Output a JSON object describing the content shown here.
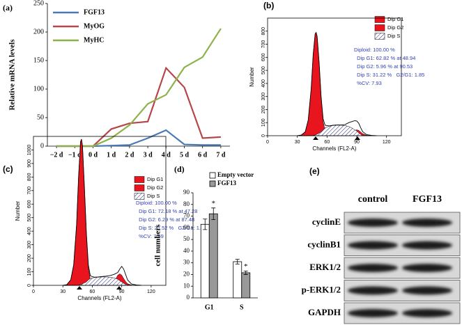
{
  "chart_data": [
    {
      "type": "line",
      "label": "(a)",
      "y_label": "Relative mRNA levels",
      "categories": [
        "−2 d",
        "−1 d",
        "0 d",
        "1 d",
        "2 d",
        "3 d",
        "4 d",
        "5 d",
        "6 d",
        "7 d"
      ],
      "ylim": [
        0,
        250
      ],
      "yticks": [
        0,
        50,
        100,
        150,
        200,
        250
      ],
      "series": [
        {
          "name": "FGF13",
          "color": "#4a7ab5",
          "values": [
            0,
            0,
            0,
            1,
            2,
            14,
            28,
            3,
            2,
            2
          ]
        },
        {
          "name": "MyOG",
          "color": "#b5474a",
          "values": [
            0,
            0,
            0,
            30,
            40,
            43,
            137,
            103,
            14,
            16
          ]
        },
        {
          "name": "MyHC",
          "color": "#8fb14a",
          "values": [
            0,
            0,
            0,
            14,
            37,
            74,
            90,
            138,
            156,
            206
          ]
        }
      ]
    },
    {
      "type": "area",
      "label": "(b)",
      "x_label": "Channels (FL2-A)",
      "y_label": "Number",
      "xlim": [
        0,
        135
      ],
      "xticks": [
        0,
        30,
        60,
        90,
        120
      ],
      "ylim": [
        0,
        900
      ],
      "yticks": [
        0,
        100,
        200,
        300,
        400,
        500,
        600,
        700,
        800
      ],
      "x": [
        30,
        34,
        38,
        41,
        44,
        46,
        48,
        49,
        50,
        52,
        54,
        56,
        58,
        62,
        66,
        70,
        74,
        78,
        82,
        86,
        88,
        90,
        92,
        94,
        96,
        100,
        105,
        110
      ],
      "series": [
        {
          "name": "Dip G1",
          "color": "#e8141e",
          "values": [
            0,
            5,
            30,
            120,
            360,
            620,
            780,
            790,
            760,
            560,
            300,
            110,
            40,
            10,
            2,
            0,
            0,
            0,
            0,
            0,
            0,
            0,
            0,
            0,
            0,
            0,
            0,
            0
          ]
        },
        {
          "name": "Dip G2",
          "color": "#e8141e",
          "values": [
            0,
            0,
            0,
            0,
            0,
            0,
            0,
            0,
            0,
            0,
            0,
            0,
            0,
            0,
            0,
            0,
            0,
            0,
            5,
            25,
            40,
            45,
            40,
            28,
            15,
            3,
            0,
            0
          ]
        },
        {
          "name": "Dip S",
          "color": "#1a237e",
          "pattern": "hatch",
          "values": [
            0,
            0,
            0,
            0,
            0,
            2,
            5,
            8,
            12,
            20,
            30,
            45,
            60,
            72,
            78,
            80,
            80,
            78,
            70,
            55,
            45,
            35,
            22,
            10,
            3,
            0,
            0,
            0
          ]
        }
      ],
      "outline": [
        0,
        5,
        30,
        120,
        360,
        620,
        780,
        790,
        760,
        560,
        300,
        130,
        80,
        75,
        80,
        82,
        82,
        85,
        100,
        110,
        115,
        112,
        95,
        60,
        30,
        8,
        2,
        0
      ],
      "stats": [
        "Diploid: 100.00 %",
        "  Dip G1: 62.82 % at 48.94",
        "  Dip G2: 5.96 % at 90.53",
        "  Dip S: 31.22 %   G2/G1: 1.85",
        "  %CV: 7.93"
      ]
    },
    {
      "type": "area",
      "label": "(c)",
      "x_label": "Channels (FL2-A)",
      "y_label": "Number",
      "xlim": [
        0,
        135
      ],
      "xticks": [
        0,
        30,
        60,
        90,
        120
      ],
      "ylim": [
        0,
        1100
      ],
      "yticks": [
        0,
        100,
        200,
        300,
        400,
        500,
        600,
        700,
        800,
        900,
        1000
      ],
      "x": [
        30,
        34,
        38,
        41,
        44,
        46,
        48,
        49,
        50,
        52,
        54,
        56,
        58,
        62,
        66,
        70,
        74,
        78,
        82,
        86,
        88,
        90,
        92,
        94,
        96,
        100,
        105,
        110
      ],
      "series": [
        {
          "name": "Dip G1",
          "color": "#e8141e",
          "values": [
            0,
            5,
            40,
            150,
            450,
            800,
            1060,
            1080,
            1030,
            720,
            380,
            130,
            40,
            10,
            2,
            0,
            0,
            0,
            0,
            0,
            0,
            0,
            0,
            0,
            0,
            0,
            0,
            0
          ]
        },
        {
          "name": "Dip G2",
          "color": "#e8141e",
          "values": [
            0,
            0,
            0,
            0,
            0,
            0,
            0,
            0,
            0,
            0,
            0,
            0,
            0,
            0,
            0,
            0,
            0,
            0,
            20,
            75,
            85,
            75,
            50,
            28,
            12,
            2,
            0,
            0
          ]
        },
        {
          "name": "Dip S",
          "color": "#1a237e",
          "pattern": "hatch",
          "values": [
            0,
            0,
            0,
            0,
            0,
            2,
            5,
            8,
            12,
            18,
            25,
            40,
            50,
            58,
            60,
            62,
            62,
            60,
            55,
            45,
            35,
            25,
            15,
            8,
            3,
            0,
            0,
            0
          ]
        }
      ],
      "outline": [
        0,
        5,
        40,
        150,
        450,
        800,
        1060,
        1080,
        1030,
        720,
        380,
        150,
        70,
        60,
        62,
        65,
        68,
        72,
        80,
        95,
        120,
        140,
        120,
        80,
        40,
        10,
        3,
        0
      ],
      "stats": [
        "Diploid: 100.00 %",
        "  Dip G1: 72.18 % at 47.28",
        "  Dip G2: 6.29 % at 87.48",
        "  Dip S: 21.52 %   G2/G1: 1.85",
        "  %CV: 7.69"
      ]
    },
    {
      "type": "bar",
      "label": "(d)",
      "y_label": "cell numbers",
      "categories": [
        "G1",
        "S"
      ],
      "ylim": [
        0,
        90
      ],
      "yticks": [
        0,
        10,
        20,
        30,
        40,
        50,
        60,
        70,
        80,
        90
      ],
      "series": [
        {
          "name": "Empty vector",
          "color": "#ffffff",
          "values": [
            63,
            31
          ],
          "errors": [
            4.5,
            2
          ]
        },
        {
          "name": "FGF13",
          "color": "#999999",
          "values": [
            72,
            21.5
          ],
          "errors": [
            5,
            1.5
          ]
        }
      ],
      "annotations": [
        "*",
        "*"
      ]
    }
  ],
  "blot": {
    "label": "(e)",
    "columns": [
      "control",
      "FGF13"
    ],
    "rows": [
      "cyclinE",
      "cyclinB1",
      "ERK1/2",
      "p-ERK1/2",
      "GAPDH"
    ]
  }
}
